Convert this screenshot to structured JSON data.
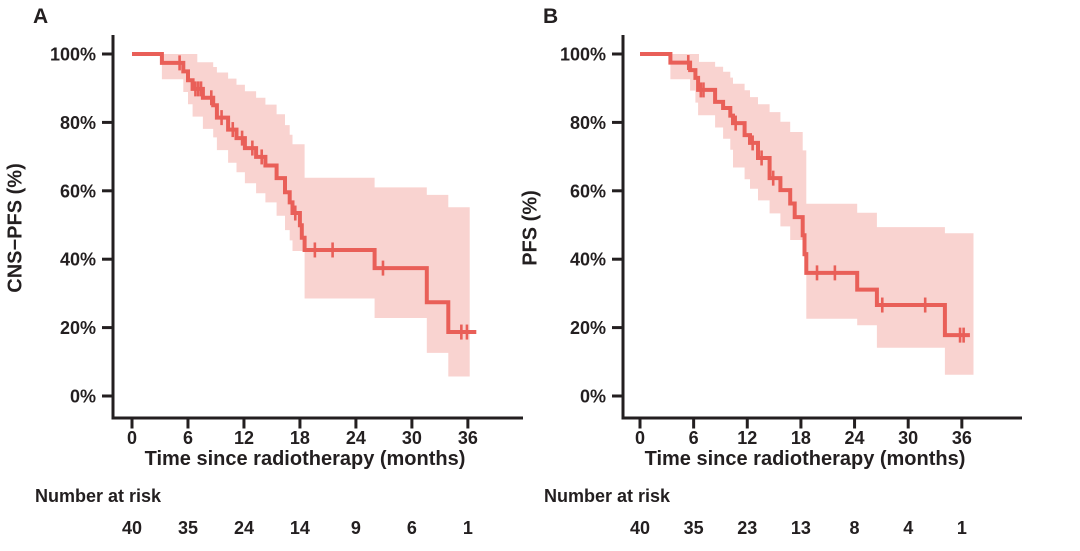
{
  "styles": {
    "background": "#ffffff",
    "line_color": "#e95f58",
    "band_color": "#f9d3d0",
    "axis_color": "#231f20",
    "text_color": "#231f20"
  },
  "chart_data": [
    {
      "type": "line",
      "subtype": "kaplan_meier_step",
      "panel_label": "A",
      "ylabel": "CNS−PFS (%)",
      "xlabel": "Time since radiotherapy (months)",
      "risk_label": "Number at risk",
      "ylim": [
        0,
        100
      ],
      "xlim": [
        0,
        42
      ],
      "x_ticks": [
        0,
        6,
        12,
        18,
        24,
        30,
        36
      ],
      "y_ticks": [
        {
          "value": 0,
          "label": "0%"
        },
        {
          "value": 20,
          "label": "20%"
        },
        {
          "value": 40,
          "label": "40%"
        },
        {
          "value": 60,
          "label": "60%"
        },
        {
          "value": 80,
          "label": "80%"
        },
        {
          "value": 100,
          "label": "100%"
        }
      ],
      "risk_times": [
        0,
        6,
        12,
        18,
        24,
        30,
        36
      ],
      "number_at_risk": [
        40,
        35,
        24,
        14,
        9,
        6,
        1
      ],
      "survival_steps": [
        [
          0,
          100
        ],
        [
          3.2,
          97.4
        ],
        [
          5.5,
          94.9
        ],
        [
          6.0,
          92.3
        ],
        [
          6.5,
          89.8
        ],
        [
          7.6,
          87.2
        ],
        [
          8.7,
          85.0
        ],
        [
          9.1,
          81.4
        ],
        [
          10.3,
          77.9
        ],
        [
          11.2,
          75.4
        ],
        [
          12.1,
          72.5
        ],
        [
          13.3,
          69.9
        ],
        [
          14.3,
          67.4
        ],
        [
          15.5,
          63.7
        ],
        [
          16.4,
          59.6
        ],
        [
          16.9,
          56.6
        ],
        [
          17.2,
          53.5
        ],
        [
          18.0,
          49.9
        ],
        [
          18.2,
          46.3
        ],
        [
          18.5,
          42.7
        ],
        [
          26.0,
          37.4
        ],
        [
          31.6,
          27.4
        ],
        [
          33.9,
          18.7
        ]
      ],
      "curve_end_month": 36.9,
      "censor_marks": [
        [
          5.1,
          97.4
        ],
        [
          6.8,
          89.8
        ],
        [
          7.1,
          89.8
        ],
        [
          7.4,
          89.8
        ],
        [
          8.5,
          87.2
        ],
        [
          9.6,
          81.4
        ],
        [
          10.8,
          77.9
        ],
        [
          11.8,
          75.4
        ],
        [
          12.9,
          72.5
        ],
        [
          13.9,
          69.9
        ],
        [
          17.5,
          53.5
        ],
        [
          19.6,
          42.7
        ],
        [
          21.5,
          42.7
        ],
        [
          26.9,
          37.4
        ],
        [
          35.3,
          18.7
        ],
        [
          35.9,
          18.7
        ]
      ],
      "ci_upper": [
        [
          0,
          100
        ],
        [
          7.0,
          97.6
        ],
        [
          8.7,
          96.2
        ],
        [
          9.1,
          94.6
        ],
        [
          10.3,
          92.8
        ],
        [
          11.2,
          91.0
        ],
        [
          12.1,
          89.1
        ],
        [
          13.3,
          87.2
        ],
        [
          14.3,
          85.2
        ],
        [
          15.5,
          82.4
        ],
        [
          16.4,
          79.2
        ],
        [
          16.9,
          76.4
        ],
        [
          17.2,
          73.6
        ],
        [
          18.5,
          63.8
        ],
        [
          26.0,
          61.0
        ],
        [
          31.6,
          58.8
        ],
        [
          33.9,
          55.2
        ]
      ],
      "ci_lower": [
        [
          0,
          100
        ],
        [
          3.2,
          92.6
        ],
        [
          5.5,
          88.9
        ],
        [
          6.0,
          85.3
        ],
        [
          6.5,
          81.7
        ],
        [
          7.6,
          78.1
        ],
        [
          8.7,
          75.6
        ],
        [
          9.1,
          71.9
        ],
        [
          10.3,
          68.2
        ],
        [
          11.2,
          65.4
        ],
        [
          12.1,
          62.2
        ],
        [
          13.3,
          59.3
        ],
        [
          14.3,
          56.6
        ],
        [
          15.5,
          52.7
        ],
        [
          16.4,
          48.5
        ],
        [
          16.9,
          45.5
        ],
        [
          17.2,
          42.4
        ],
        [
          18.5,
          28.5
        ],
        [
          26.0,
          22.8
        ],
        [
          31.6,
          12.6
        ],
        [
          33.9,
          5.7
        ]
      ],
      "band_end_month": 36.2
    },
    {
      "type": "line",
      "subtype": "kaplan_meier_step",
      "panel_label": "B",
      "ylabel": "PFS (%)",
      "xlabel": "Time since radiotherapy (months)",
      "risk_label": "Number at risk",
      "ylim": [
        0,
        100
      ],
      "xlim": [
        0,
        42
      ],
      "x_ticks": [
        0,
        6,
        12,
        18,
        24,
        30,
        36
      ],
      "y_ticks": [
        {
          "value": 0,
          "label": "0%"
        },
        {
          "value": 20,
          "label": "20%"
        },
        {
          "value": 40,
          "label": "40%"
        },
        {
          "value": 60,
          "label": "60%"
        },
        {
          "value": 80,
          "label": "80%"
        },
        {
          "value": 100,
          "label": "100%"
        }
      ],
      "risk_times": [
        0,
        6,
        12,
        18,
        24,
        30,
        36
      ],
      "number_at_risk": [
        40,
        35,
        23,
        13,
        8,
        4,
        1
      ],
      "survival_steps": [
        [
          0,
          100
        ],
        [
          3.4,
          97.5
        ],
        [
          5.6,
          95.3
        ],
        [
          6.2,
          93.0
        ],
        [
          6.5,
          89.5
        ],
        [
          8.4,
          86.0
        ],
        [
          9.3,
          84.2
        ],
        [
          10.1,
          82.0
        ],
        [
          10.4,
          79.8
        ],
        [
          11.7,
          76.3
        ],
        [
          12.3,
          74.0
        ],
        [
          13.2,
          69.6
        ],
        [
          14.5,
          63.7
        ],
        [
          15.7,
          60.2
        ],
        [
          16.8,
          56.3
        ],
        [
          17.3,
          52.3
        ],
        [
          18.2,
          47.0
        ],
        [
          18.4,
          41.5
        ],
        [
          18.6,
          36.0
        ],
        [
          24.3,
          31.1
        ],
        [
          26.5,
          26.6
        ],
        [
          34.1,
          17.8
        ]
      ],
      "curve_end_month": 36.9,
      "censor_marks": [
        [
          5.4,
          97.5
        ],
        [
          6.8,
          89.5
        ],
        [
          7.1,
          89.5
        ],
        [
          10.7,
          79.8
        ],
        [
          12.6,
          74.0
        ],
        [
          13.6,
          69.6
        ],
        [
          14.9,
          63.7
        ],
        [
          19.8,
          36.0
        ],
        [
          21.8,
          36.0
        ],
        [
          27.1,
          26.6
        ],
        [
          31.9,
          26.6
        ],
        [
          35.8,
          17.8
        ],
        [
          36.2,
          17.8
        ]
      ],
      "ci_upper": [
        [
          0,
          100
        ],
        [
          6.6,
          97.7
        ],
        [
          8.4,
          96.3
        ],
        [
          9.3,
          94.8
        ],
        [
          10.1,
          93.1
        ],
        [
          10.4,
          91.3
        ],
        [
          11.7,
          89.4
        ],
        [
          12.3,
          87.4
        ],
        [
          13.2,
          85.3
        ],
        [
          14.5,
          83.0
        ],
        [
          15.7,
          80.2
        ],
        [
          16.8,
          77.2
        ],
        [
          18.2,
          71.8
        ],
        [
          18.6,
          56.2
        ],
        [
          24.3,
          53.6
        ],
        [
          26.5,
          49.4
        ],
        [
          34.1,
          47.6
        ]
      ],
      "ci_lower": [
        [
          0,
          100
        ],
        [
          3.4,
          92.6
        ],
        [
          5.6,
          89.3
        ],
        [
          6.2,
          85.8
        ],
        [
          6.5,
          82.1
        ],
        [
          8.4,
          78.5
        ],
        [
          9.3,
          75.2
        ],
        [
          10.1,
          72.0
        ],
        [
          10.4,
          66.8
        ],
        [
          11.7,
          63.4
        ],
        [
          12.3,
          60.6
        ],
        [
          13.2,
          57.2
        ],
        [
          14.5,
          53.4
        ],
        [
          15.7,
          49.6
        ],
        [
          16.8,
          45.6
        ],
        [
          18.2,
          40.8
        ],
        [
          18.6,
          22.6
        ],
        [
          24.3,
          20.7
        ],
        [
          26.5,
          14.1
        ],
        [
          34.1,
          6.2
        ]
      ],
      "band_end_month": 37.3
    }
  ]
}
